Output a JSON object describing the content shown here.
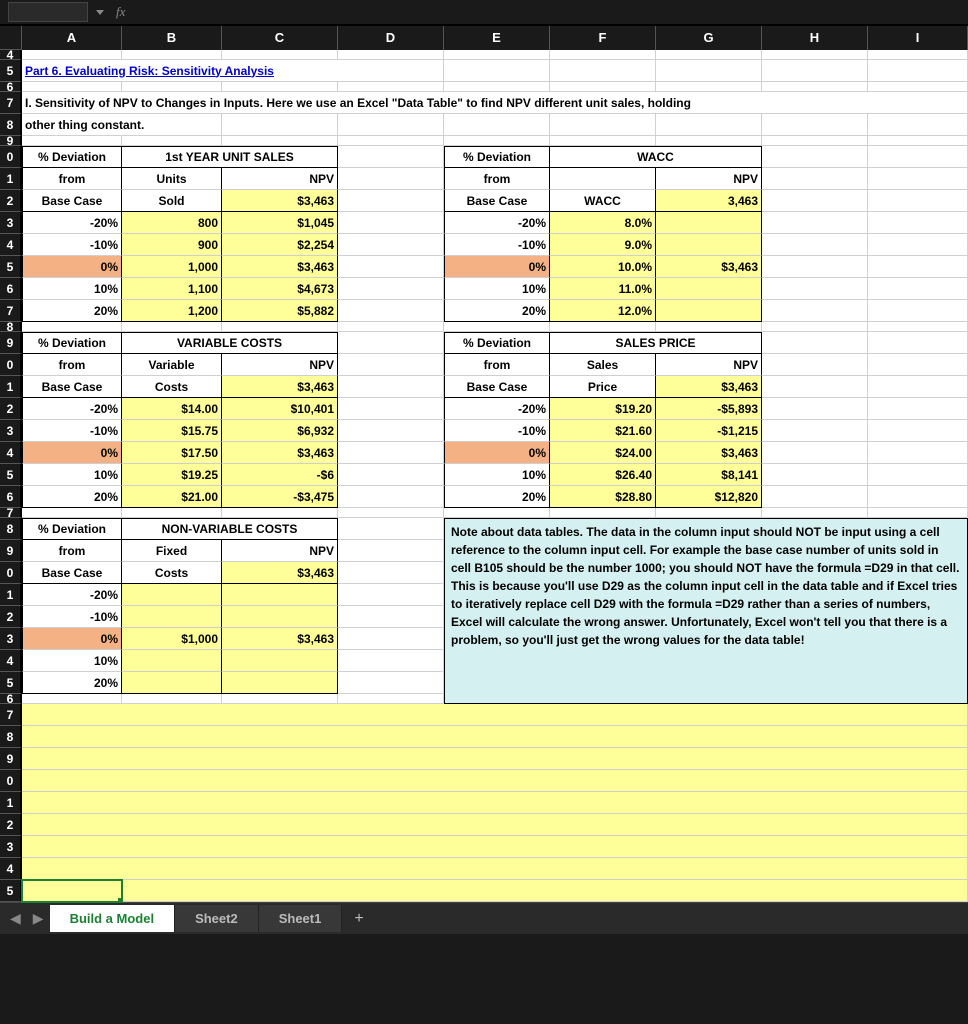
{
  "formula_bar": {
    "fx": "fx"
  },
  "columns": {
    "labels": [
      "A",
      "B",
      "C",
      "D",
      "E",
      "F",
      "G",
      "H",
      "I"
    ],
    "widths": [
      100,
      100,
      116,
      106,
      106,
      106,
      106,
      106,
      100
    ]
  },
  "row_heights": {
    "default": 22,
    "small": 10
  },
  "row_numbers": [
    "4",
    "5",
    "6",
    "7",
    "8",
    "9",
    "0",
    "1",
    "2",
    "3",
    "4",
    "5",
    "6",
    "7",
    "8",
    "9",
    "0",
    "1",
    "2",
    "3",
    "4",
    "5",
    "6",
    "7",
    "8",
    "9",
    "0",
    "1",
    "2",
    "3",
    "4",
    "5",
    "6",
    "7",
    "8",
    "9",
    "0",
    "1",
    "2",
    "3",
    "4",
    "5"
  ],
  "title": "Part 6.  Evaluating Risk:  Sensitivity Analysis",
  "subtitle_line1": "I.  Sensitivity of NPV to Changes in Inputs.    Here we use an Excel \"Data Table\" to find NPV    different unit sales, holding",
  "subtitle_line2": "other thing constant.",
  "headers": {
    "pct_deviation": "% Deviation",
    "from": "from",
    "base_case": "Base Case",
    "npv": "NPV"
  },
  "table1": {
    "title": "1st YEAR UNIT SALES",
    "sub1": "Units",
    "sub2": "Sold",
    "base_npv": "$3,463",
    "rows": [
      {
        "dev": "-20%",
        "v": "800",
        "npv": "$1,045"
      },
      {
        "dev": "-10%",
        "v": "900",
        "npv": "$2,254"
      },
      {
        "dev": "0%",
        "v": "1,000",
        "npv": "$3,463"
      },
      {
        "dev": "10%",
        "v": "1,100",
        "npv": "$4,673"
      },
      {
        "dev": "20%",
        "v": "1,200",
        "npv": "$5,882"
      }
    ]
  },
  "table2": {
    "title": "WACC",
    "sub1": "",
    "sub2": "WACC",
    "base_npv": "3,463",
    "rows": [
      {
        "dev": "-20%",
        "v": "8.0%",
        "npv": ""
      },
      {
        "dev": "-10%",
        "v": "9.0%",
        "npv": ""
      },
      {
        "dev": "0%",
        "v": "10.0%",
        "npv": "$3,463"
      },
      {
        "dev": "10%",
        "v": "11.0%",
        "npv": ""
      },
      {
        "dev": "20%",
        "v": "12.0%",
        "npv": ""
      }
    ]
  },
  "table3": {
    "title": "VARIABLE COSTS",
    "sub1": "Variable",
    "sub2": "Costs",
    "base_npv": "$3,463",
    "rows": [
      {
        "dev": "-20%",
        "v": "$14.00",
        "npv": "$10,401"
      },
      {
        "dev": "-10%",
        "v": "$15.75",
        "npv": "$6,932"
      },
      {
        "dev": "0%",
        "v": "$17.50",
        "npv": "$3,463"
      },
      {
        "dev": "10%",
        "v": "$19.25",
        "npv": "-$6"
      },
      {
        "dev": "20%",
        "v": "$21.00",
        "npv": "-$3,475"
      }
    ]
  },
  "table4": {
    "title": "SALES PRICE",
    "sub1": "Sales",
    "sub2": "Price",
    "base_npv": "$3,463",
    "rows": [
      {
        "dev": "-20%",
        "v": "$19.20",
        "npv": "-$5,893"
      },
      {
        "dev": "-10%",
        "v": "$21.60",
        "npv": "-$1,215"
      },
      {
        "dev": "0%",
        "v": "$24.00",
        "npv": "$3,463"
      },
      {
        "dev": "10%",
        "v": "$26.40",
        "npv": "$8,141"
      },
      {
        "dev": "20%",
        "v": "$28.80",
        "npv": "$12,820"
      }
    ]
  },
  "table5": {
    "title": "NON-VARIABLE COSTS",
    "sub1": "Fixed",
    "sub2": "Costs",
    "base_npv": "$3,463",
    "rows": [
      {
        "dev": "-20%",
        "v": "",
        "npv": ""
      },
      {
        "dev": "-10%",
        "v": "",
        "npv": ""
      },
      {
        "dev": "0%",
        "v": "$1,000",
        "npv": "$3,463"
      },
      {
        "dev": "10%",
        "v": "",
        "npv": ""
      },
      {
        "dev": "20%",
        "v": "",
        "npv": ""
      }
    ]
  },
  "note": "Note about data tables.  The data in the column input should NOT be input using a cell reference to the column input cell.  For example the base case number of units sold in cell B105 should be the number 1000; you should NOT have the formula =D29 in that cell.  This is because you'll use D29 as the column input cell in the data table and if Excel tries to iteratively replace cell D29 with the formula =D29 rather than a series of numbers, Excel will calculate the wrong answer.  Unfortunately, Excel won't tell you that there is a problem, so you'll just get the wrong values for the data table!",
  "tabs": {
    "active": "Build a Model",
    "others": [
      "Sheet2",
      "Sheet1"
    ]
  },
  "colors": {
    "yellow": "#ffff99",
    "orange": "#f4b183",
    "note_bg": "#d5f0f0",
    "header_bg": "#1a1a1a",
    "active_tab": "#1e7e34"
  }
}
